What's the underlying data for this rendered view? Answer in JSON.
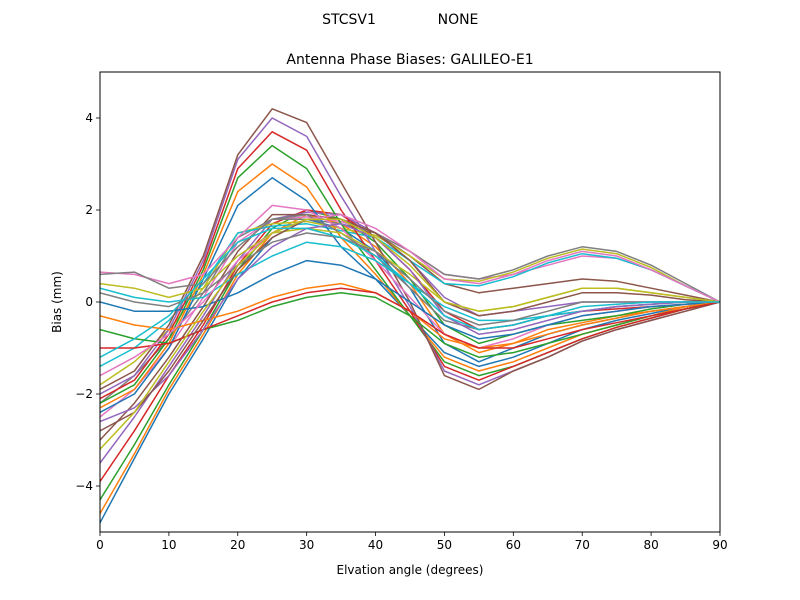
{
  "figure": {
    "suptitle_left": "STCSV1",
    "suptitle_right": "NONE"
  },
  "chart_data": {
    "type": "line",
    "title": "Antenna Phase Biases: GALILEO-E1",
    "xlabel": "Elvation angle (degrees)",
    "ylabel": "Bias (mm)",
    "xlim": [
      0,
      90
    ],
    "ylim": [
      -5,
      5
    ],
    "xticks": [
      0,
      10,
      20,
      30,
      40,
      50,
      60,
      70,
      80,
      90
    ],
    "yticks": [
      -4,
      -2,
      0,
      2,
      4
    ],
    "grid": false,
    "legend": "none",
    "x": [
      0,
      5,
      10,
      15,
      20,
      25,
      30,
      35,
      40,
      45,
      50,
      55,
      60,
      65,
      70,
      75,
      80,
      85,
      90
    ],
    "colors": [
      "#1f77b4",
      "#ff7f0e",
      "#2ca02c",
      "#d62728",
      "#9467bd",
      "#8c564b",
      "#e377c2",
      "#7f7f7f",
      "#bcbd22",
      "#17becf"
    ],
    "series": [
      {
        "values": [
          -4.8,
          -3.4,
          -2.0,
          -0.8,
          0.5,
          1.4,
          1.8,
          1.6,
          1.1,
          0.3,
          -0.9,
          -1.3,
          -1.0,
          -0.7,
          -0.5,
          -0.35,
          -0.2,
          -0.1,
          0.0
        ]
      },
      {
        "values": [
          -4.6,
          -3.3,
          -1.9,
          -0.7,
          0.6,
          1.5,
          1.9,
          1.7,
          1.2,
          0.4,
          -0.7,
          -1.1,
          -0.9,
          -0.6,
          -0.45,
          -0.3,
          -0.2,
          -0.1,
          0.0
        ]
      },
      {
        "values": [
          -4.3,
          -3.1,
          -1.8,
          -0.6,
          0.7,
          1.6,
          2.0,
          1.8,
          1.3,
          0.5,
          -0.5,
          -0.9,
          -0.7,
          -0.5,
          -0.4,
          -0.3,
          -0.15,
          -0.05,
          0.0
        ]
      },
      {
        "values": [
          -3.9,
          -2.8,
          -1.6,
          -0.5,
          0.8,
          1.7,
          2.0,
          1.9,
          1.4,
          0.7,
          -0.2,
          -0.6,
          -0.5,
          -0.3,
          -0.2,
          -0.15,
          -0.1,
          -0.05,
          0.0
        ]
      },
      {
        "values": [
          -3.5,
          -2.5,
          -1.4,
          -0.3,
          0.9,
          1.8,
          1.95,
          1.9,
          1.5,
          0.9,
          0.1,
          -0.3,
          -0.2,
          -0.1,
          0.0,
          0.0,
          0.0,
          0.0,
          0.0
        ]
      },
      {
        "values": [
          -3.0,
          -2.2,
          -1.2,
          -0.1,
          1.1,
          1.9,
          1.9,
          1.8,
          1.5,
          1.0,
          0.4,
          0.2,
          0.3,
          0.4,
          0.5,
          0.45,
          0.3,
          0.15,
          0.0
        ]
      },
      {
        "values": [
          -2.5,
          -1.9,
          -1.0,
          0.1,
          1.3,
          1.8,
          1.85,
          1.75,
          1.5,
          1.1,
          0.6,
          0.5,
          0.6,
          0.8,
          1.0,
          0.95,
          0.7,
          0.35,
          0.0
        ]
      },
      {
        "values": [
          -2.2,
          -1.6,
          -0.8,
          0.2,
          1.4,
          1.8,
          1.8,
          1.7,
          1.5,
          1.1,
          0.6,
          0.5,
          0.7,
          1.0,
          1.2,
          1.1,
          0.8,
          0.4,
          0.0
        ]
      },
      {
        "values": [
          -1.8,
          -1.3,
          -0.6,
          0.3,
          1.5,
          1.7,
          1.75,
          1.6,
          1.45,
          1.0,
          0.5,
          0.45,
          0.65,
          0.95,
          1.15,
          1.05,
          0.75,
          0.35,
          0.0
        ]
      },
      {
        "values": [
          -1.4,
          -1.0,
          -0.4,
          0.4,
          1.5,
          1.65,
          1.7,
          1.55,
          1.4,
          0.9,
          0.4,
          0.35,
          0.55,
          0.85,
          1.05,
          0.95,
          0.7,
          0.35,
          0.0
        ]
      },
      {
        "values": [
          -2.4,
          -2.0,
          -1.0,
          0.5,
          2.1,
          2.7,
          2.2,
          1.2,
          0.5,
          -0.3,
          -1.1,
          -1.4,
          -1.2,
          -0.9,
          -0.6,
          -0.4,
          -0.25,
          -0.1,
          0.0
        ]
      },
      {
        "values": [
          -2.3,
          -1.9,
          -0.9,
          0.6,
          2.4,
          3.0,
          2.5,
          1.4,
          0.6,
          -0.3,
          -1.2,
          -1.5,
          -1.3,
          -1.0,
          -0.7,
          -0.5,
          -0.3,
          -0.1,
          0.0
        ]
      },
      {
        "values": [
          -2.2,
          -1.8,
          -0.8,
          0.7,
          2.7,
          3.4,
          2.9,
          1.7,
          0.7,
          -0.3,
          -1.3,
          -1.6,
          -1.4,
          -1.1,
          -0.8,
          -0.55,
          -0.35,
          -0.15,
          0.0
        ]
      },
      {
        "values": [
          -2.1,
          -1.7,
          -0.7,
          0.8,
          2.9,
          3.7,
          3.3,
          2.0,
          0.9,
          -0.2,
          -1.4,
          -1.7,
          -1.4,
          -1.1,
          -0.8,
          -0.55,
          -0.35,
          -0.15,
          0.0
        ]
      },
      {
        "values": [
          -2.0,
          -1.6,
          -0.6,
          0.9,
          3.1,
          4.0,
          3.6,
          2.3,
          1.1,
          -0.1,
          -1.5,
          -1.8,
          -1.5,
          -1.2,
          -0.85,
          -0.6,
          -0.4,
          -0.2,
          0.0
        ]
      },
      {
        "values": [
          -1.9,
          -1.5,
          -0.5,
          1.0,
          3.2,
          4.2,
          3.9,
          2.6,
          1.3,
          0.0,
          -1.6,
          -1.9,
          -1.5,
          -1.2,
          -0.85,
          -0.6,
          -0.4,
          -0.2,
          0.0
        ]
      },
      {
        "values": [
          0.65,
          0.6,
          0.4,
          0.6,
          1.4,
          2.1,
          2.0,
          1.6,
          0.9,
          0.1,
          -0.7,
          -1.0,
          -0.8,
          -0.5,
          -0.3,
          -0.2,
          -0.1,
          -0.05,
          0.0
        ]
      },
      {
        "values": [
          0.6,
          0.65,
          0.3,
          0.4,
          1.2,
          1.8,
          1.9,
          1.5,
          1.0,
          0.3,
          -0.4,
          -0.6,
          -0.5,
          -0.3,
          -0.2,
          -0.1,
          -0.05,
          0.0,
          0.0
        ]
      },
      {
        "values": [
          0.4,
          0.3,
          0.1,
          0.3,
          1.0,
          1.5,
          1.6,
          1.5,
          1.1,
          0.6,
          0.0,
          -0.2,
          -0.1,
          0.1,
          0.3,
          0.3,
          0.2,
          0.1,
          0.0
        ]
      },
      {
        "values": [
          0.3,
          0.1,
          0.0,
          0.1,
          0.6,
          1.0,
          1.3,
          1.2,
          0.9,
          0.4,
          -0.1,
          -0.4,
          -0.4,
          -0.3,
          -0.2,
          -0.1,
          -0.05,
          0.0,
          0.0
        ]
      },
      {
        "values": [
          0.0,
          -0.2,
          -0.2,
          -0.1,
          0.2,
          0.6,
          0.9,
          0.8,
          0.5,
          0.0,
          -0.5,
          -0.8,
          -0.7,
          -0.5,
          -0.3,
          -0.2,
          -0.1,
          -0.05,
          0.0
        ]
      },
      {
        "values": [
          -0.3,
          -0.5,
          -0.6,
          -0.4,
          -0.2,
          0.1,
          0.3,
          0.4,
          0.2,
          -0.2,
          -0.8,
          -1.0,
          -0.9,
          -0.7,
          -0.5,
          -0.35,
          -0.2,
          -0.1,
          0.0
        ]
      },
      {
        "values": [
          -0.6,
          -0.8,
          -0.9,
          -0.6,
          -0.4,
          -0.1,
          0.1,
          0.2,
          0.1,
          -0.3,
          -0.9,
          -1.2,
          -1.1,
          -0.9,
          -0.7,
          -0.5,
          -0.3,
          -0.15,
          0.0
        ]
      },
      {
        "values": [
          -1.0,
          -1.0,
          -0.9,
          -0.6,
          -0.3,
          0.0,
          0.2,
          0.3,
          0.2,
          -0.2,
          -0.7,
          -1.0,
          -1.0,
          -0.8,
          -0.6,
          -0.45,
          -0.3,
          -0.15,
          0.0
        ]
      },
      {
        "values": [
          -2.6,
          -2.3,
          -1.6,
          -0.6,
          0.5,
          1.2,
          1.6,
          1.7,
          1.4,
          0.7,
          -0.3,
          -0.7,
          -0.6,
          -0.4,
          -0.2,
          -0.1,
          -0.05,
          0.0,
          0.0
        ]
      },
      {
        "values": [
          -2.8,
          -2.4,
          -1.5,
          -0.4,
          0.7,
          1.4,
          1.8,
          1.8,
          1.5,
          0.9,
          0.0,
          -0.3,
          -0.2,
          0.0,
          0.2,
          0.2,
          0.15,
          0.05,
          0.0
        ]
      },
      {
        "values": [
          -1.6,
          -1.2,
          -0.7,
          0.0,
          0.9,
          1.5,
          1.8,
          1.9,
          1.6,
          1.1,
          0.5,
          0.4,
          0.6,
          0.9,
          1.1,
          1.0,
          0.7,
          0.35,
          0.0
        ]
      },
      {
        "values": [
          0.2,
          0.0,
          -0.1,
          0.2,
          0.8,
          1.3,
          1.5,
          1.4,
          1.1,
          0.5,
          -0.2,
          -0.5,
          -0.4,
          -0.2,
          0.0,
          0.0,
          0.0,
          0.0,
          0.0
        ]
      },
      {
        "values": [
          -3.2,
          -2.4,
          -1.3,
          -0.2,
          0.8,
          1.5,
          1.8,
          1.8,
          1.4,
          0.8,
          0.0,
          -0.2,
          -0.1,
          0.1,
          0.3,
          0.3,
          0.2,
          0.1,
          0.0
        ]
      },
      {
        "values": [
          -1.2,
          -0.8,
          -0.3,
          0.5,
          1.3,
          1.6,
          1.6,
          1.4,
          1.0,
          0.4,
          -0.3,
          -0.6,
          -0.5,
          -0.3,
          -0.1,
          -0.05,
          0.0,
          0.0,
          0.0
        ]
      }
    ]
  }
}
